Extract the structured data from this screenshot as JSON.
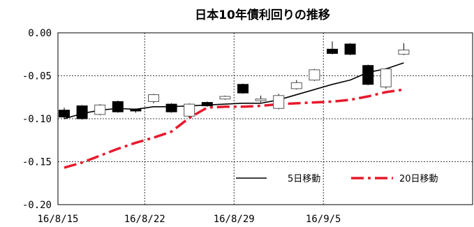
{
  "chart_data": {
    "type": "candlestick",
    "title": "日本10年債利回りの推移",
    "xlabel": "",
    "ylabel": "",
    "ylim": [
      -0.2,
      0.0
    ],
    "y_ticks": [
      "0.00",
      "-0.05",
      "-0.10",
      "-0.15",
      "-0.20"
    ],
    "x_ticks": [
      "16/8/15",
      "16/8/22",
      "16/8/29",
      "16/9/5"
    ],
    "grid": true,
    "legend_position": "bottom-right",
    "candles": [
      {
        "date": "16/8/15",
        "open": -0.09,
        "close": -0.098,
        "high": -0.087,
        "low": -0.1
      },
      {
        "date": "16/8/16",
        "open": -0.085,
        "close": -0.1,
        "high": -0.084,
        "low": -0.101
      },
      {
        "date": "16/8/17",
        "open": -0.095,
        "close": -0.084,
        "high": -0.083,
        "low": -0.096
      },
      {
        "date": "16/8/18",
        "open": -0.08,
        "close": -0.092,
        "high": -0.079,
        "low": -0.093
      },
      {
        "date": "16/8/19",
        "open": -0.089,
        "close": -0.091,
        "high": -0.088,
        "low": -0.093
      },
      {
        "date": "16/8/22",
        "open": -0.08,
        "close": -0.072,
        "high": -0.071,
        "low": -0.082
      },
      {
        "date": "16/8/23",
        "open": -0.083,
        "close": -0.092,
        "high": -0.082,
        "low": -0.093
      },
      {
        "date": "16/8/24",
        "open": -0.097,
        "close": -0.083,
        "high": -0.082,
        "low": -0.098
      },
      {
        "date": "16/8/25",
        "open": -0.081,
        "close": -0.085,
        "high": -0.08,
        "low": -0.086
      },
      {
        "date": "16/8/26",
        "open": -0.077,
        "close": -0.074,
        "high": -0.073,
        "low": -0.078
      },
      {
        "date": "16/8/29",
        "open": -0.06,
        "close": -0.07,
        "high": -0.059,
        "low": -0.071
      },
      {
        "date": "16/8/30",
        "open": -0.079,
        "close": -0.077,
        "high": -0.073,
        "low": -0.081
      },
      {
        "date": "16/8/31",
        "open": -0.088,
        "close": -0.073,
        "high": -0.071,
        "low": -0.089
      },
      {
        "date": "16/9/1",
        "open": -0.065,
        "close": -0.058,
        "high": -0.055,
        "low": -0.066
      },
      {
        "date": "16/9/2",
        "open": -0.055,
        "close": -0.043,
        "high": -0.042,
        "low": -0.056
      },
      {
        "date": "16/9/5",
        "open": -0.019,
        "close": -0.024,
        "high": -0.01,
        "low": -0.025
      },
      {
        "date": "16/9/6",
        "open": -0.013,
        "close": -0.025,
        "high": -0.012,
        "low": -0.026
      },
      {
        "date": "16/9/7",
        "open": -0.038,
        "close": -0.06,
        "high": -0.037,
        "low": -0.061
      },
      {
        "date": "16/9/8",
        "open": -0.063,
        "close": -0.042,
        "high": -0.041,
        "low": -0.065
      },
      {
        "date": "16/9/9",
        "open": -0.025,
        "close": -0.02,
        "high": -0.012,
        "low": -0.026
      }
    ],
    "series": [
      {
        "name": "5日移動",
        "color": "#000000",
        "values": [
          -0.1,
          -0.094,
          -0.09,
          -0.088,
          -0.089,
          -0.086,
          -0.086,
          -0.085,
          -0.084,
          -0.083,
          -0.082,
          -0.082,
          -0.078,
          -0.072,
          -0.066,
          -0.06,
          -0.055,
          -0.046,
          -0.042,
          -0.035
        ]
      },
      {
        "name": "20日移動",
        "color": "#e8192c",
        "values": [
          -0.157,
          -0.151,
          -0.143,
          -0.135,
          -0.128,
          -0.122,
          -0.115,
          -0.099,
          -0.087,
          -0.086,
          -0.086,
          -0.085,
          -0.083,
          -0.082,
          -0.081,
          -0.08,
          -0.078,
          -0.074,
          -0.069,
          -0.066
        ]
      }
    ]
  }
}
